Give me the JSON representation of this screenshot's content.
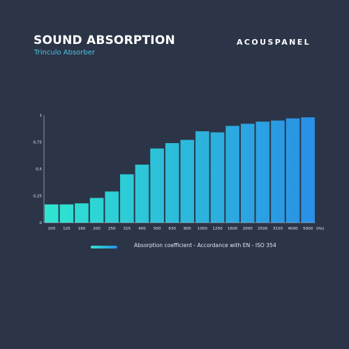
{
  "header": {
    "title": "SOUND ABSORPTION",
    "subtitle": "Trinculo Absorber",
    "brand": "ACOUSPANEL"
  },
  "colors": {
    "background": "#2b3547",
    "bar_start": "#2ee6d0",
    "bar_end": "#2a8fe6",
    "axis": "#c8d0dc",
    "text": "#e2e8f0"
  },
  "chart_data": {
    "type": "bar",
    "title": "SOUND ABSORPTION",
    "subtitle": "Trinculo Absorber",
    "categories": [
      "100",
      "125",
      "160",
      "200",
      "250",
      "315",
      "400",
      "500",
      "630",
      "800",
      "1000",
      "1250",
      "1600",
      "2000",
      "2500",
      "3150",
      "4000",
      "5000"
    ],
    "values": [
      0.17,
      0.17,
      0.18,
      0.23,
      0.29,
      0.45,
      0.54,
      0.69,
      0.74,
      0.77,
      0.85,
      0.84,
      0.9,
      0.92,
      0.94,
      0.95,
      0.97,
      0.98
    ],
    "x_unit": "(Hz)",
    "ylim": [
      0,
      1
    ],
    "yticks": [
      0,
      0.25,
      0.5,
      0.75,
      1
    ],
    "ytick_labels": [
      "0",
      "0,25",
      "0,5",
      "0,75",
      "1"
    ],
    "grid": false,
    "legend": {
      "position": "bottom",
      "label": "Absorption coefficient - Accordance with EN - ISO 354"
    }
  }
}
